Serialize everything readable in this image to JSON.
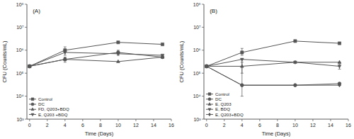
{
  "chart_data": [
    {
      "type": "line",
      "title": "(A)",
      "xlabel": "Time (Days)",
      "ylabel": "CFU (Counts/mL)",
      "x": [
        0,
        4,
        10,
        15
      ],
      "xlim": [
        -0.3,
        16
      ],
      "xticks": [
        0,
        2,
        4,
        6,
        8,
        10,
        12,
        14,
        16
      ],
      "ylim": [
        1000,
        100000000
      ],
      "yticks": [
        {
          "value": 1000,
          "label": "10³"
        },
        {
          "value": 10000,
          "label": "10⁴"
        },
        {
          "value": 100000,
          "label": "10⁵"
        },
        {
          "value": 1000000,
          "label": "10⁶"
        },
        {
          "value": 10000000,
          "label": "10⁷"
        },
        {
          "value": 100000000,
          "label": "10⁸"
        }
      ],
      "log": "y",
      "grid": false,
      "legend": "lower left",
      "series": [
        {
          "name": "Control",
          "color": "#555555",
          "marker": "square",
          "line_style": "solid",
          "values": [
            200000,
            1000000,
            2200000,
            1800000
          ],
          "yerr_lo": [
            0,
            0,
            0,
            0
          ],
          "yerr_hi": [
            0,
            400000,
            0,
            0
          ]
        },
        {
          "name": "DC",
          "color": "#555555",
          "marker": "circle",
          "line_style": "solid",
          "values": [
            200000,
            400000,
            800000,
            500000
          ],
          "yerr_lo": [
            0,
            100000,
            200000,
            0
          ],
          "yerr_hi": [
            0,
            100000,
            200000,
            0
          ]
        },
        {
          "name": "FD, Q203+BDQ",
          "color": "#555555",
          "marker": "triangle-up",
          "line_style": "solid",
          "values": [
            200000,
            400000,
            320000,
            500000
          ],
          "yerr_lo": [
            0,
            50000,
            0,
            0
          ],
          "yerr_hi": [
            0,
            50000,
            0,
            0
          ]
        },
        {
          "name": "E, Q203 +BDQ",
          "color": "#555555",
          "marker": "triangle-down",
          "line_style": "solid",
          "values": [
            200000,
            800000,
            700000,
            600000
          ],
          "yerr_lo": [
            0,
            200000,
            0,
            0
          ],
          "yerr_hi": [
            0,
            200000,
            0,
            0
          ]
        }
      ]
    },
    {
      "type": "line",
      "title": "(B)",
      "xlabel": "Time (Days)",
      "ylabel": "CFU (Counts/mL)",
      "x": [
        0,
        4,
        10,
        15
      ],
      "xlim": [
        -0.3,
        16
      ],
      "xticks": [
        0,
        2,
        4,
        6,
        8,
        10,
        12,
        14,
        16
      ],
      "ylim": [
        1000,
        100000000
      ],
      "yticks": [
        {
          "value": 1000,
          "label": "10³"
        },
        {
          "value": 10000,
          "label": "10⁴"
        },
        {
          "value": 100000,
          "label": "10⁵"
        },
        {
          "value": 1000000,
          "label": "10⁶"
        },
        {
          "value": 10000000,
          "label": "10⁷"
        },
        {
          "value": 100000000,
          "label": "10⁸"
        }
      ],
      "log": "y",
      "grid": false,
      "legend": "lower left",
      "series": [
        {
          "name": "Control",
          "color": "#555555",
          "marker": "square",
          "line_style": "solid",
          "values": [
            200000,
            800000,
            2500000,
            2000000
          ],
          "yerr_lo": [
            0,
            200000,
            0,
            0
          ],
          "yerr_hi": [
            0,
            400000,
            0,
            0
          ]
        },
        {
          "name": "DC",
          "color": "#555555",
          "marker": "circle",
          "line_style": "solid",
          "values": [
            200000,
            30000,
            30000,
            35000
          ],
          "yerr_lo": [
            0,
            20000,
            0,
            0
          ],
          "yerr_hi": [
            0,
            400000,
            0,
            0
          ]
        },
        {
          "name": "E, Q203",
          "color": "#555555",
          "marker": "triangle-up",
          "line_style": "solid",
          "values": [
            200000,
            200000,
            300000,
            300000
          ],
          "yerr_lo": [
            0,
            100000,
            0,
            0
          ],
          "yerr_hi": [
            0,
            100000,
            0,
            0
          ]
        },
        {
          "name": "E, BDQ",
          "color": "#555555",
          "marker": "triangle-down",
          "line_style": "solid",
          "values": [
            200000,
            400000,
            300000,
            200000
          ],
          "yerr_lo": [
            0,
            0,
            0,
            50000
          ],
          "yerr_hi": [
            0,
            0,
            0,
            50000
          ]
        },
        {
          "name": "E, Q203+BDQ",
          "color": "#555555",
          "marker": "diamond",
          "line_style": "solid",
          "values": [
            200000,
            30000,
            30000,
            30000
          ],
          "yerr_lo": [
            0,
            0,
            0,
            0
          ],
          "yerr_hi": [
            0,
            0,
            0,
            0
          ]
        }
      ]
    }
  ]
}
